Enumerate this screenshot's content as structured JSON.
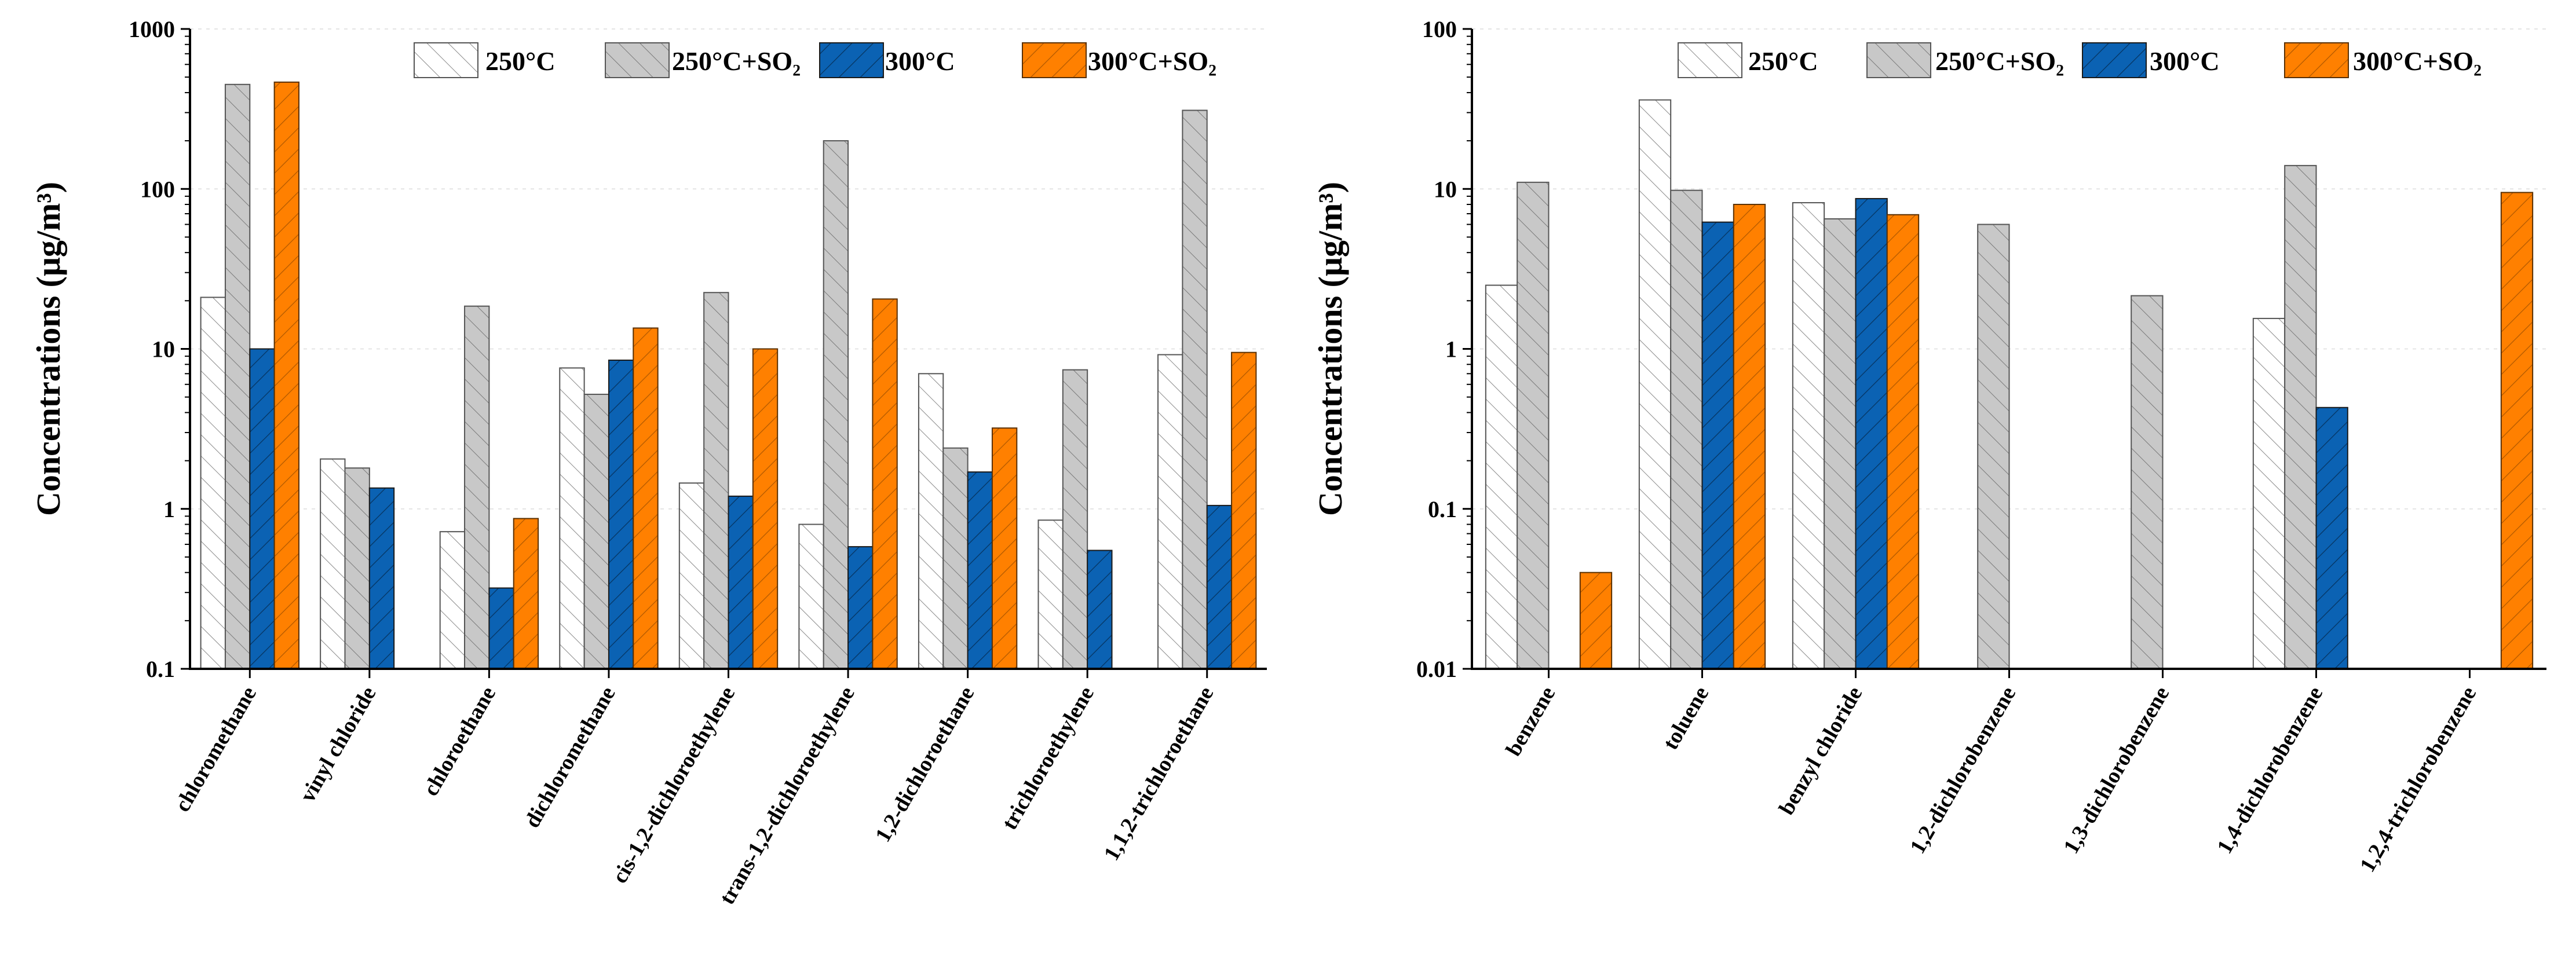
{
  "colors": {
    "s250": "#ffffff",
    "s250so2": "#c8c8c8",
    "s300": "#0b62b3",
    "s300so2": "#ff8000"
  },
  "chart_data": [
    {
      "type": "bar",
      "yscale": "log",
      "ylabel": "Concentrations (μg/m³)",
      "ylim": [
        0.1,
        1000
      ],
      "yticks": [
        {
          "value": 0.1,
          "label": "0.1"
        },
        {
          "value": 1,
          "label": "1"
        },
        {
          "value": 10,
          "label": "10"
        },
        {
          "value": 100,
          "label": "100"
        },
        {
          "value": 1000,
          "label": "1000"
        }
      ],
      "legend_position": "top-right",
      "categories": [
        "chloromethane",
        "vinyl chloride",
        "chloroethane",
        "dichloromethane",
        "cis-1,2-dichloroethylene",
        "trans-1,2-dichloroethylene",
        "1,2-dichloroethane",
        "trichloroethylene",
        "1,1,2-trichloroethane"
      ],
      "series": [
        {
          "name": "250°C",
          "values": [
            21,
            2.05,
            0.72,
            7.6,
            1.45,
            0.8,
            7.0,
            0.85,
            9.2
          ]
        },
        {
          "name": "250°C+SO₂",
          "values": [
            450,
            1.8,
            18.5,
            5.2,
            22.5,
            200,
            2.4,
            7.4,
            310
          ]
        },
        {
          "name": "300°C",
          "values": [
            10,
            1.35,
            0.32,
            8.5,
            1.2,
            0.58,
            1.7,
            0.55,
            1.05
          ]
        },
        {
          "name": "300°C+SO₂",
          "values": [
            465,
            null,
            0.87,
            13.5,
            10,
            20.5,
            3.2,
            null,
            9.5
          ]
        }
      ]
    },
    {
      "type": "bar",
      "yscale": "log",
      "ylabel": "Concentrations (μg/m³)",
      "ylim": [
        0.01,
        100
      ],
      "yticks": [
        {
          "value": 0.01,
          "label": "0.01"
        },
        {
          "value": 0.1,
          "label": "0.1"
        },
        {
          "value": 1,
          "label": "1"
        },
        {
          "value": 10,
          "label": "10"
        },
        {
          "value": 100,
          "label": "100"
        }
      ],
      "legend_position": "top-right",
      "categories": [
        "benzene",
        "toluene",
        "benzyl chloride",
        "1,2-dichlorobenzene",
        "1,3-dichlorobenzene",
        "1,4-dichlorobenzene",
        "1,2,4-trichlorobenzene"
      ],
      "series": [
        {
          "name": "250°C",
          "values": [
            2.5,
            36,
            8.2,
            null,
            null,
            1.55,
            null
          ]
        },
        {
          "name": "250°C+SO₂",
          "values": [
            11,
            9.8,
            6.5,
            6.0,
            2.15,
            14,
            null
          ]
        },
        {
          "name": "300°C",
          "values": [
            null,
            6.2,
            8.7,
            null,
            null,
            0.43,
            null
          ]
        },
        {
          "name": "300°C+SO₂",
          "values": [
            0.04,
            8.0,
            6.9,
            null,
            null,
            null,
            9.5
          ]
        }
      ]
    }
  ]
}
